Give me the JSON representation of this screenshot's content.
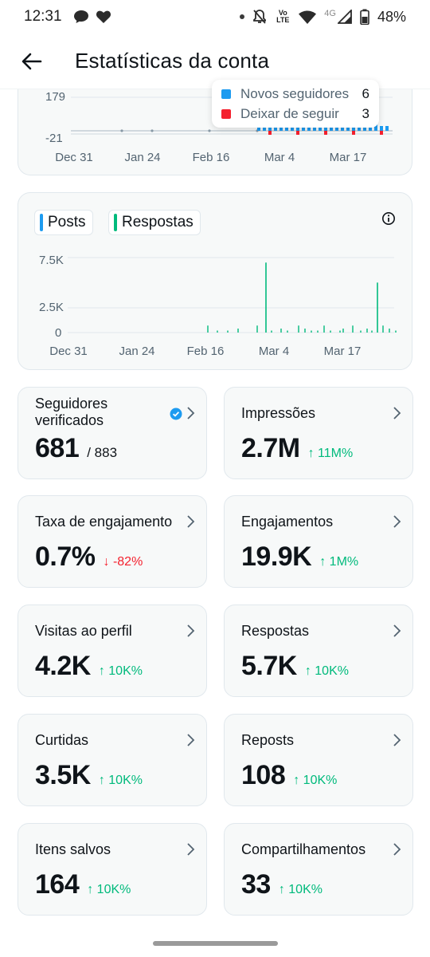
{
  "status_bar": {
    "time": "12:31",
    "network": "4G",
    "volte": "Vo LTE",
    "battery": "48%"
  },
  "header": {
    "title": "Estatísticas da conta"
  },
  "followers_chart": {
    "y_ticks": [
      "179",
      "-21"
    ],
    "x_ticks": [
      "Dec 31",
      "Jan 24",
      "Feb 16",
      "Mar 4",
      "Mar 17"
    ],
    "tooltip": [
      {
        "label": "Novos seguidores",
        "value": "6",
        "color": "#1d9bf0"
      },
      {
        "label": "Deixar de seguir",
        "value": "3",
        "color": "#f4212e"
      }
    ]
  },
  "posts_chart": {
    "legend": {
      "posts": "Posts",
      "replies": "Respostas"
    },
    "colors": {
      "posts": "#1d9bf0",
      "replies": "#00ba7c"
    },
    "y_ticks": [
      "7.5K",
      "2.5K",
      "0"
    ],
    "x_ticks": [
      "Dec 31",
      "Jan 24",
      "Feb 16",
      "Mar 4",
      "Mar 17"
    ],
    "info_icon": "info-circle-icon"
  },
  "chart_data": [
    {
      "type": "bar",
      "series": [
        {
          "name": "Novos seguidores",
          "color": "#1d9bf0"
        },
        {
          "name": "Deixar de seguir",
          "color": "#f4212e"
        }
      ],
      "x_ticks": [
        "Dec 31",
        "Jan 24",
        "Feb 16",
        "Mar 4",
        "Mar 17"
      ],
      "y_ticks": [
        179,
        -21
      ]
    },
    {
      "type": "bar",
      "series": [
        {
          "name": "Respostas",
          "color": "#00ba7c",
          "spikes": [
            {
              "x": "Feb 26",
              "value": 7000
            },
            {
              "x": "Mar 19",
              "value": 5000
            }
          ]
        },
        {
          "name": "Posts",
          "color": "#1d9bf0"
        }
      ],
      "x_ticks": [
        "Dec 31",
        "Jan 24",
        "Feb 16",
        "Mar 4",
        "Mar 17"
      ],
      "y_ticks": [
        7500,
        2500,
        0
      ],
      "ylim": [
        0,
        8000
      ]
    }
  ],
  "stats": [
    {
      "key": "verified_followers",
      "label": "Seguidores verificados",
      "value": "681",
      "extra": "/ 883"
    },
    {
      "key": "impressions",
      "label": "Impressões",
      "value": "2.7M",
      "delta": "↑ 11M%",
      "dir": "up"
    },
    {
      "key": "engagement_rate",
      "label": "Taxa de engajamento",
      "value": "0.7%",
      "delta": "↓ -82%",
      "dir": "down"
    },
    {
      "key": "engagements",
      "label": "Engajamentos",
      "value": "19.9K",
      "delta": "↑ 1M%",
      "dir": "up"
    },
    {
      "key": "profile_visits",
      "label": "Visitas ao perfil",
      "value": "4.2K",
      "delta": "↑ 10K%",
      "dir": "up"
    },
    {
      "key": "replies",
      "label": "Respostas",
      "value": "5.7K",
      "delta": "↑ 10K%",
      "dir": "up"
    },
    {
      "key": "likes",
      "label": "Curtidas",
      "value": "3.5K",
      "delta": "↑ 10K%",
      "dir": "up"
    },
    {
      "key": "reposts",
      "label": "Reposts",
      "value": "108",
      "delta": "↑ 10K%",
      "dir": "up"
    },
    {
      "key": "bookmarks",
      "label": "Itens salvos",
      "value": "164",
      "delta": "↑ 10K%",
      "dir": "up"
    },
    {
      "key": "shares",
      "label": "Compartilhamentos",
      "value": "33",
      "delta": "↑ 10K%",
      "dir": "up"
    }
  ]
}
